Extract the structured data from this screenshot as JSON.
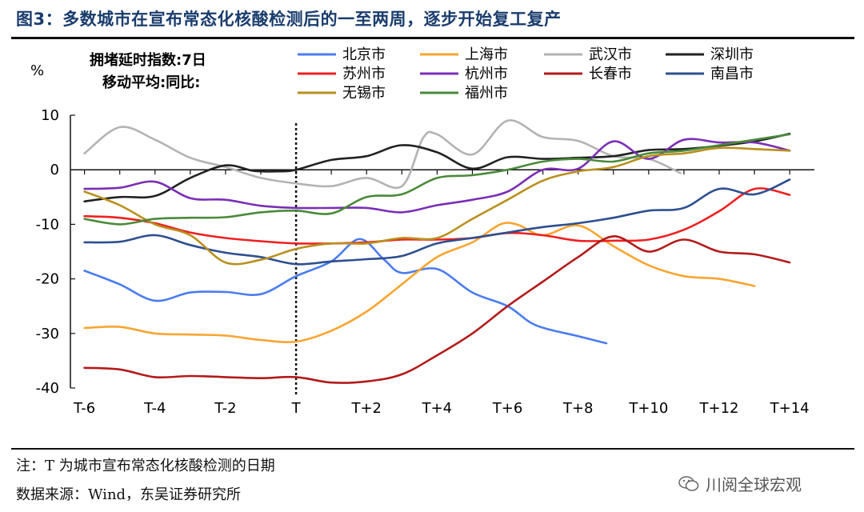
{
  "title": "图3：多数城市在宣布常态化核酸检测后的一至两周，逐步开始复工复产",
  "note": "注：T 为城市宣布常态化核酸检测的日期",
  "source": "数据来源：Wind，东吴证券研究所",
  "watermark": "川阅全球宏观",
  "chart_data": {
    "type": "line",
    "title": "",
    "ylabel": "%",
    "annotation_lines": [
      "拥堵延时指数:7日",
      "移动平均:同比:"
    ],
    "ylim": [
      -40,
      10
    ],
    "yticks": [
      10,
      0,
      -10,
      -20,
      -30,
      -40
    ],
    "xlim": [
      -6.4,
      14.7
    ],
    "xticks": [
      -6,
      -4,
      -2,
      0,
      2,
      4,
      6,
      8,
      10,
      12,
      14
    ],
    "xticklabels": [
      "T-6",
      "T-4",
      "T-2",
      "T",
      "T+2",
      "T+4",
      "T+6",
      "T+8",
      "T+10",
      "T+12",
      "T+14"
    ],
    "vline_x": 0,
    "series": [
      {
        "name": "北京市",
        "color": "#4a7cf0",
        "points": [
          [
            -6,
            -18.5
          ],
          [
            -5,
            -21
          ],
          [
            -4,
            -24
          ],
          [
            -3,
            -22.5
          ],
          [
            -2,
            -22.4
          ],
          [
            -1,
            -22.8
          ],
          [
            0,
            -19.5
          ],
          [
            1,
            -16.8
          ],
          [
            1.8,
            -12.7
          ],
          [
            2.5,
            -16.5
          ],
          [
            3,
            -18.9
          ],
          [
            4,
            -18.2
          ],
          [
            5,
            -22.5
          ],
          [
            6,
            -25
          ],
          [
            6.8,
            -28.5
          ],
          [
            8,
            -30.5
          ],
          [
            8.8,
            -31.8
          ]
        ]
      },
      {
        "name": "上海市",
        "color": "#f7a530",
        "points": [
          [
            -6,
            -29
          ],
          [
            -5,
            -28.8
          ],
          [
            -4,
            -30
          ],
          [
            -3,
            -30.2
          ],
          [
            -2,
            -30.4
          ],
          [
            -1,
            -31.2
          ],
          [
            0,
            -31.5
          ],
          [
            1,
            -29.5
          ],
          [
            2,
            -26
          ],
          [
            3,
            -21
          ],
          [
            4,
            -16
          ],
          [
            5,
            -13.3
          ],
          [
            5.8,
            -10
          ],
          [
            6.3,
            -10.1
          ],
          [
            7,
            -12
          ],
          [
            8,
            -10.2
          ],
          [
            9,
            -14
          ],
          [
            10,
            -17.5
          ],
          [
            11,
            -19.5
          ],
          [
            12,
            -20
          ],
          [
            13,
            -21.3
          ]
        ]
      },
      {
        "name": "武汉市",
        "color": "#b3b3b3",
        "points": [
          [
            -6,
            3
          ],
          [
            -5,
            7.8
          ],
          [
            -4,
            5.5
          ],
          [
            -3,
            2.2
          ],
          [
            -2,
            0.5
          ],
          [
            -1,
            -1.5
          ],
          [
            0,
            -2.5
          ],
          [
            1,
            -3
          ],
          [
            2,
            -1.5
          ],
          [
            3,
            -3
          ],
          [
            3.6,
            5.8
          ],
          [
            4,
            6.5
          ],
          [
            5,
            2.8
          ],
          [
            6,
            9
          ],
          [
            7,
            6
          ],
          [
            8,
            5.3
          ],
          [
            9,
            2.5
          ],
          [
            10,
            2
          ],
          [
            10.9,
            -0.6
          ]
        ]
      },
      {
        "name": "深圳市",
        "color": "#222222",
        "points": [
          [
            -6,
            -5.8
          ],
          [
            -5,
            -5
          ],
          [
            -4,
            -4.8
          ],
          [
            -3,
            -1.5
          ],
          [
            -2,
            0.8
          ],
          [
            -1.2,
            -0.2
          ],
          [
            -0.5,
            -0.3
          ],
          [
            0,
            0
          ],
          [
            1,
            1.8
          ],
          [
            2,
            2.5
          ],
          [
            3,
            4.5
          ],
          [
            4,
            3.2
          ],
          [
            5,
            0.2
          ],
          [
            6,
            2.3
          ],
          [
            7,
            2
          ],
          [
            8,
            2.2
          ],
          [
            9,
            2.5
          ],
          [
            10,
            3.6
          ],
          [
            11,
            3.8
          ],
          [
            12,
            4.4
          ],
          [
            13,
            5.2
          ],
          [
            14,
            6.6
          ]
        ]
      },
      {
        "name": "苏州市",
        "color": "#ef2020",
        "points": [
          [
            -6,
            -8.5
          ],
          [
            -5,
            -8.8
          ],
          [
            -4,
            -9.8
          ],
          [
            -3,
            -11.5
          ],
          [
            -2,
            -12.5
          ],
          [
            -1,
            -13.1
          ],
          [
            0,
            -13.5
          ],
          [
            1,
            -13.5
          ],
          [
            2,
            -13.3
          ],
          [
            3,
            -12.8
          ],
          [
            4,
            -12.8
          ],
          [
            5,
            -12.5
          ],
          [
            6,
            -11.6
          ],
          [
            7,
            -12
          ],
          [
            8,
            -13
          ],
          [
            9,
            -13
          ],
          [
            10,
            -12.8
          ],
          [
            11,
            -11
          ],
          [
            12,
            -7.6
          ],
          [
            13,
            -3.5
          ],
          [
            14,
            -4.6
          ]
        ]
      },
      {
        "name": "杭州市",
        "color": "#7a2fb5",
        "points": [
          [
            -6,
            -3.5
          ],
          [
            -5,
            -3.3
          ],
          [
            -4,
            -2.2
          ],
          [
            -3,
            -5.2
          ],
          [
            -2,
            -5.5
          ],
          [
            -1,
            -6.6
          ],
          [
            0,
            -7
          ],
          [
            1,
            -7
          ],
          [
            2,
            -7
          ],
          [
            3,
            -7.8
          ],
          [
            4,
            -6.5
          ],
          [
            5,
            -5.5
          ],
          [
            6,
            -4
          ],
          [
            7,
            0
          ],
          [
            8,
            0.2
          ],
          [
            9,
            5.2
          ],
          [
            10,
            2
          ],
          [
            11,
            5.5
          ],
          [
            12,
            5
          ],
          [
            13,
            5
          ],
          [
            14,
            3.5
          ]
        ]
      },
      {
        "name": "长春市",
        "color": "#b31b1b",
        "points": [
          [
            -6,
            -36.3
          ],
          [
            -5,
            -36.6
          ],
          [
            -4,
            -38
          ],
          [
            -3,
            -37.8
          ],
          [
            -2,
            -38
          ],
          [
            -1,
            -38.2
          ],
          [
            0,
            -38
          ],
          [
            1,
            -39
          ],
          [
            2,
            -38.8
          ],
          [
            3,
            -37.5
          ],
          [
            4,
            -34
          ],
          [
            5,
            -30
          ],
          [
            6,
            -25
          ],
          [
            7,
            -20.5
          ],
          [
            8,
            -16
          ],
          [
            9,
            -12.2
          ],
          [
            10,
            -15
          ],
          [
            11,
            -12.8
          ],
          [
            12,
            -15
          ],
          [
            13,
            -15.5
          ],
          [
            14,
            -17
          ]
        ]
      },
      {
        "name": "南昌市",
        "color": "#2e4f8f",
        "points": [
          [
            -6,
            -13.3
          ],
          [
            -5,
            -13.2
          ],
          [
            -4,
            -12
          ],
          [
            -3,
            -13.8
          ],
          [
            -2,
            -15.2
          ],
          [
            -1,
            -16
          ],
          [
            0,
            -17.3
          ],
          [
            1,
            -16.8
          ],
          [
            2,
            -16.4
          ],
          [
            3,
            -15.8
          ],
          [
            4,
            -13.5
          ],
          [
            5,
            -12.5
          ],
          [
            6,
            -11.5
          ],
          [
            7,
            -10.5
          ],
          [
            8,
            -9.8
          ],
          [
            9,
            -8.8
          ],
          [
            10,
            -7.5
          ],
          [
            11,
            -7
          ],
          [
            12,
            -3.5
          ],
          [
            13,
            -4.5
          ],
          [
            14,
            -1.8
          ]
        ]
      },
      {
        "name": "无锡市",
        "color": "#b8901e",
        "points": [
          [
            -6,
            -4
          ],
          [
            -5,
            -6.5
          ],
          [
            -4,
            -10
          ],
          [
            -3,
            -12
          ],
          [
            -2,
            -17
          ],
          [
            -1,
            -16.5
          ],
          [
            0,
            -14.5
          ],
          [
            1,
            -13.5
          ],
          [
            2,
            -13.5
          ],
          [
            3,
            -12.5
          ],
          [
            4,
            -12.5
          ],
          [
            5,
            -9
          ],
          [
            6,
            -5.5
          ],
          [
            7,
            -2
          ],
          [
            8,
            -0.3
          ],
          [
            9,
            0.5
          ],
          [
            10,
            2.5
          ],
          [
            11,
            3
          ],
          [
            12,
            4
          ],
          [
            13,
            3.8
          ],
          [
            14,
            3.5
          ]
        ]
      },
      {
        "name": "福州市",
        "color": "#4a8a3a",
        "points": [
          [
            -6,
            -9
          ],
          [
            -5,
            -10
          ],
          [
            -4,
            -9
          ],
          [
            -3,
            -8.8
          ],
          [
            -2,
            -8.7
          ],
          [
            -1,
            -7.8
          ],
          [
            0,
            -7.5
          ],
          [
            1,
            -8
          ],
          [
            2,
            -5
          ],
          [
            3,
            -4.5
          ],
          [
            4,
            -1.5
          ],
          [
            5,
            -1
          ],
          [
            6,
            0
          ],
          [
            7,
            1.5
          ],
          [
            8,
            2
          ],
          [
            9,
            1.5
          ],
          [
            10,
            3
          ],
          [
            11,
            3.5
          ],
          [
            12,
            4.5
          ],
          [
            13,
            5.5
          ],
          [
            14,
            6.5
          ]
        ]
      }
    ]
  }
}
